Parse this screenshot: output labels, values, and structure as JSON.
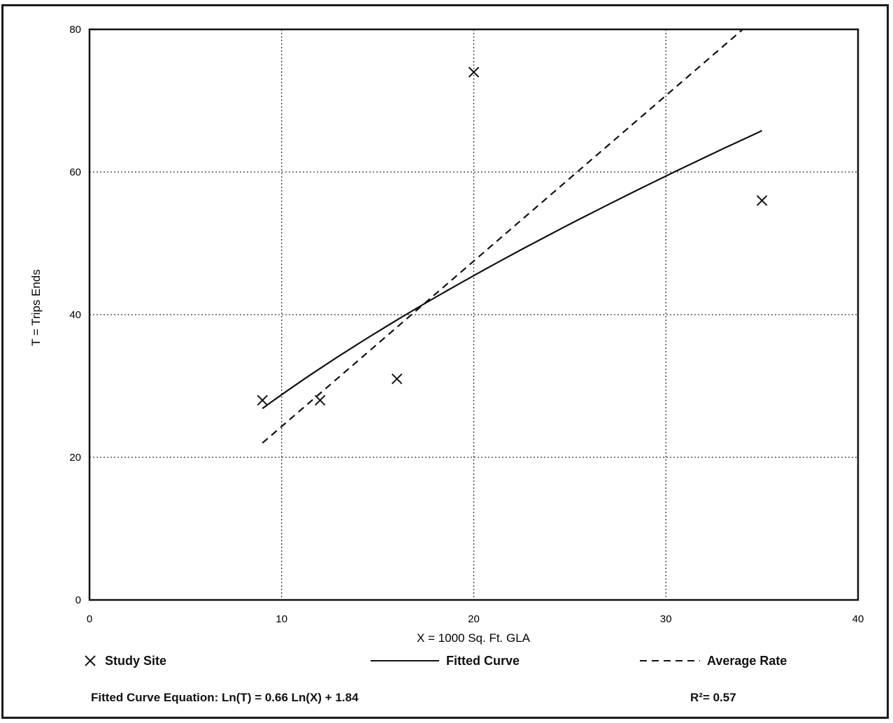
{
  "chart_data": {
    "type": "scatter",
    "title": "",
    "xlabel": "X = 1000 Sq. Ft. GLA",
    "ylabel": "T = Trips Ends",
    "xlim": [
      0,
      40
    ],
    "ylim": [
      0,
      80
    ],
    "xticks": [
      0,
      10,
      20,
      30,
      40
    ],
    "yticks": [
      0,
      20,
      40,
      60,
      80
    ],
    "grid": true,
    "series": [
      {
        "name": "Study Site",
        "kind": "points",
        "marker": "x",
        "x": [
          9,
          12,
          16,
          20,
          35
        ],
        "y": [
          28,
          28,
          31,
          74,
          56
        ]
      },
      {
        "name": "Fitted Curve",
        "kind": "curve",
        "style": "solid",
        "x_range": [
          9,
          35
        ]
      },
      {
        "name": "Average Rate",
        "kind": "line",
        "style": "dashed",
        "x_range": [
          9,
          34
        ],
        "y_range": [
          22,
          80
        ]
      }
    ]
  },
  "legend": {
    "study_site": "Study Site",
    "fitted_curve": "Fitted Curve",
    "average_rate": "Average Rate"
  },
  "footer": {
    "equation": "Fitted Curve Equation: Ln(T) = 0.66 Ln(X) + 1.84",
    "r_squared": "R²= 0.57"
  }
}
